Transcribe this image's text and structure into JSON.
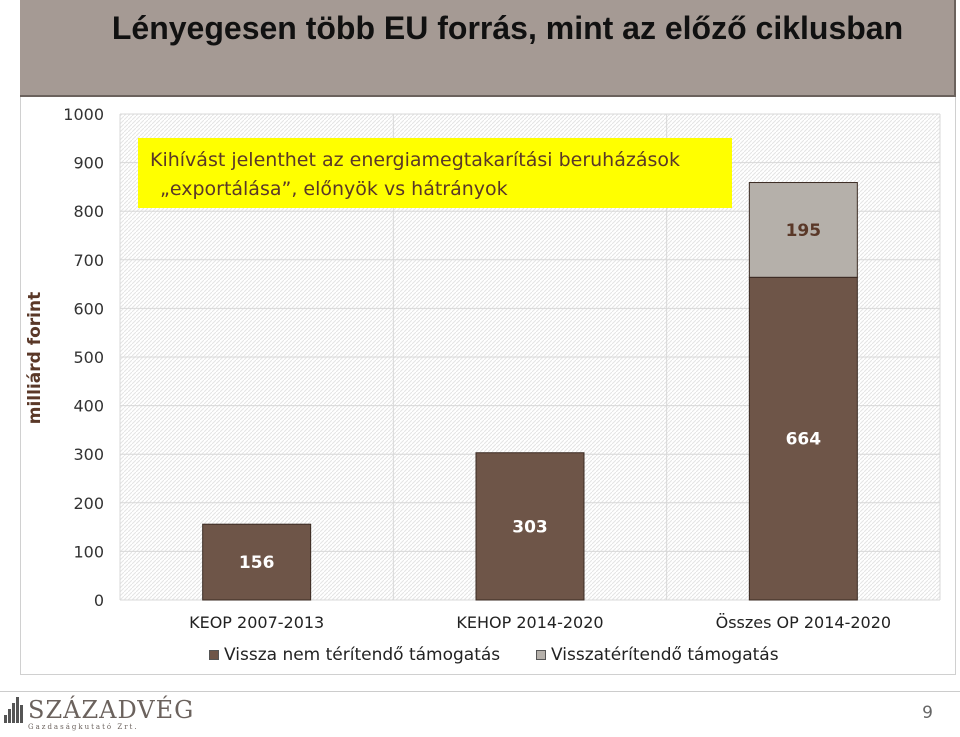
{
  "title": "Lényegesen több EU forrás, mint az előző ciklusban",
  "callout": {
    "line1": "Kihívást jelenthet az energiamegtakarítási beruházások",
    "line2": "„exportálása”, előnyök vs hátrányok"
  },
  "chart_data": {
    "type": "bar",
    "stacked": true,
    "categories": [
      "KEOP 2007-2013",
      "KEHOP 2014-2020",
      "Összes OP 2014-2020"
    ],
    "series": [
      {
        "name": "Vissza nem térítendő támogatás",
        "values": [
          156,
          303,
          664
        ],
        "labels": [
          "156",
          "303",
          "664"
        ],
        "color": "#6e5548"
      },
      {
        "name": "Visszatérítendő támogatás",
        "values": [
          0,
          0,
          195
        ],
        "labels": [
          "",
          "",
          "195"
        ],
        "color": "#b5b0aa"
      }
    ],
    "ylabel": "milliárd forint",
    "ylim": [
      0,
      1000
    ],
    "yticks": [
      "0",
      "100",
      "200",
      "300",
      "400",
      "500",
      "600",
      "700",
      "800",
      "900",
      "1000"
    ],
    "grid": true,
    "legend": "bottom"
  },
  "footer": {
    "logo_name": "SZÁZADVÉG",
    "logo_sub": "Gazdaságkutató Zrt.",
    "page_number": "9"
  }
}
